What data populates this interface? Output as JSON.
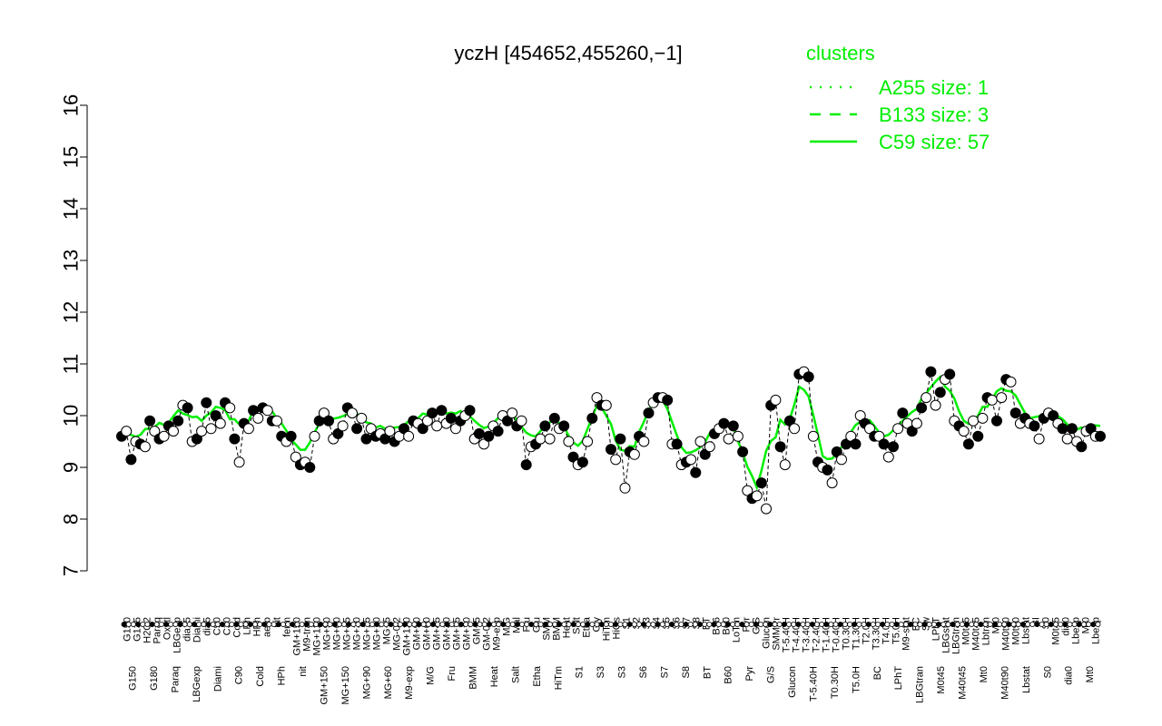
{
  "chart_data": {
    "type": "line",
    "title": "yczH [454652,455260,−1]",
    "ylim": [
      7,
      16
    ],
    "yticks": [
      7,
      8,
      9,
      10,
      11,
      12,
      13,
      14,
      15,
      16
    ],
    "legend": {
      "title": "clusters",
      "placement": "top-right",
      "color": "#00ee00",
      "entries": [
        {
          "label": "A255 size: 1",
          "style": "dotted"
        },
        {
          "label": "B133 size: 3",
          "style": "dashed"
        },
        {
          "label": "C59 size: 57",
          "style": "solid"
        }
      ]
    },
    "top_labels": [
      "G150",
      "G135",
      "H2O2",
      "Paraq",
      "Oxctl",
      "LBGexp",
      "dia15",
      "Diami",
      "dia5",
      "C90",
      "C30",
      "Cold",
      "LPh",
      "HPh",
      "aero",
      "nit",
      "ferm",
      "GM+150",
      "M9-tran",
      "MG+120",
      "MG+90",
      "MG+60",
      "MG+45",
      "MG+30",
      "MG+15",
      "MG+10",
      "MG+5",
      "MG-0.2",
      "GM+120",
      "GM+90",
      "GM+60",
      "GM+45",
      "GM+30",
      "GM+15",
      "GM+10",
      "GM+5",
      "GM-0.2",
      "M9-exp",
      "M/G",
      "Mal",
      "Fru",
      "Glu",
      "SMM",
      "BMM",
      "Heat",
      "Salt",
      "Etha",
      "Gly",
      "HiTm",
      "HiOs",
      "S1",
      "S2",
      "S3",
      "S4",
      "S5",
      "S6",
      "S7",
      "S8",
      "BT",
      "B36",
      "B60",
      "LoTm",
      "Pyr",
      "G/S",
      "Glucon",
      "SMMPr",
      "T-5.40H",
      "T-4.40H",
      "T-3.40H",
      "T-2.40H",
      "T-1.40H",
      "T-0.40H",
      "T0.30H",
      "T1.30H",
      "T2.0H",
      "T3.30H",
      "T4.0H",
      "T5.0H",
      "M9-stat",
      "BC",
      "Sw",
      "LPhT",
      "LBGstat",
      "LBGtran",
      "M0t45",
      "M40t45",
      "Lbtran",
      "Mt0",
      "M40t90",
      "M0t90",
      "Lbstat",
      "BI",
      "S0",
      "M0t45",
      "dia0",
      "Lbexp",
      "Mt0",
      "Lbexp"
    ],
    "bottom_labels": [
      "G150",
      "G180",
      "Paraq",
      "LBGexp",
      "Diami",
      "C90",
      "Cold",
      "HPh",
      "nit",
      "GM+150",
      "MG+150",
      "MG+90",
      "MG+60",
      "M9-exp",
      "M/G",
      "Fru",
      "BMM",
      "Heat",
      "Salt",
      "Etha",
      "HiTm",
      "S1",
      "S3",
      "S3",
      "S6",
      "S7",
      "S8",
      "BT",
      "B60",
      "Pyr",
      "G/S",
      "Glucon",
      "T-5.40H",
      "T0.30H",
      "T5.0H",
      "BC",
      "LPhT",
      "LBGtran",
      "M0t45",
      "M40t45",
      "Mt0",
      "M40t90",
      "Lbstat",
      "S0",
      "dia0",
      "Mt0"
    ],
    "series": [
      {
        "style": "points",
        "points": [
          [
            1,
            9.6
          ],
          [
            2,
            9.7
          ],
          [
            3,
            9.15
          ],
          [
            4,
            9.5
          ],
          [
            5,
            9.45
          ],
          [
            6,
            9.4
          ],
          [
            7,
            9.9
          ],
          [
            8,
            9.7
          ],
          [
            9,
            9.55
          ],
          [
            10,
            9.6
          ],
          [
            11,
            9.8
          ],
          [
            12,
            9.7
          ],
          [
            13,
            9.9
          ],
          [
            14,
            10.2
          ],
          [
            15,
            10.15
          ],
          [
            16,
            9.5
          ],
          [
            17,
            9.55
          ],
          [
            18,
            9.7
          ],
          [
            19,
            10.25
          ],
          [
            20,
            9.75
          ],
          [
            21,
            10
          ],
          [
            22,
            9.85
          ],
          [
            23,
            10.25
          ],
          [
            24,
            10.15
          ],
          [
            25,
            9.55
          ],
          [
            26,
            9.1
          ],
          [
            27,
            9.85
          ],
          [
            28,
            9.75
          ],
          [
            29,
            10.1
          ],
          [
            30,
            9.95
          ],
          [
            31,
            10.15
          ],
          [
            32,
            10.1
          ],
          [
            33,
            9.9
          ],
          [
            34,
            9.9
          ],
          [
            35,
            9.6
          ],
          [
            36,
            9.5
          ],
          [
            37,
            9.6
          ],
          [
            38,
            9.2
          ],
          [
            39,
            9.05
          ],
          [
            40,
            9.1
          ],
          [
            41,
            9
          ],
          [
            42,
            9.6
          ],
          [
            43,
            9.9
          ],
          [
            44,
            10.05
          ],
          [
            45,
            9.9
          ],
          [
            46,
            9.55
          ],
          [
            47,
            9.65
          ],
          [
            48,
            9.8
          ],
          [
            49,
            10.15
          ],
          [
            50,
            10.05
          ],
          [
            51,
            9.75
          ],
          [
            52,
            9.95
          ],
          [
            53,
            9.55
          ],
          [
            54,
            9.75
          ],
          [
            55,
            9.6
          ],
          [
            56,
            9.65
          ],
          [
            57,
            9.55
          ],
          [
            58,
            9.7
          ],
          [
            59,
            9.5
          ],
          [
            60,
            9.6
          ],
          [
            61,
            9.75
          ],
          [
            62,
            9.6
          ],
          [
            63,
            9.9
          ],
          [
            64,
            9.85
          ],
          [
            65,
            9.75
          ],
          [
            66,
            9.9
          ],
          [
            67,
            10.05
          ],
          [
            68,
            9.8
          ],
          [
            69,
            10.1
          ],
          [
            70,
            9.85
          ],
          [
            71,
            9.95
          ],
          [
            72,
            9.75
          ],
          [
            73,
            9.9
          ],
          [
            74,
            10
          ],
          [
            75,
            10.1
          ],
          [
            76,
            9.55
          ],
          [
            77,
            9.65
          ],
          [
            78,
            9.45
          ],
          [
            79,
            9.6
          ],
          [
            80,
            9.8
          ],
          [
            81,
            9.7
          ],
          [
            82,
            10
          ],
          [
            83,
            9.9
          ],
          [
            84,
            10.05
          ],
          [
            85,
            9.8
          ],
          [
            86,
            9.9
          ],
          [
            87,
            9.05
          ],
          [
            88,
            9.4
          ],
          [
            89,
            9.45
          ],
          [
            90,
            9.55
          ],
          [
            91,
            9.8
          ],
          [
            92,
            9.55
          ],
          [
            93,
            9.95
          ],
          [
            94,
            9.75
          ],
          [
            95,
            9.8
          ],
          [
            96,
            9.5
          ],
          [
            97,
            9.2
          ],
          [
            98,
            9.05
          ],
          [
            99,
            9.1
          ],
          [
            100,
            9.5
          ],
          [
            101,
            9.95
          ],
          [
            102,
            10.35
          ],
          [
            103,
            10.2
          ],
          [
            104,
            10.2
          ],
          [
            105,
            9.35
          ],
          [
            106,
            9.15
          ],
          [
            107,
            9.55
          ],
          [
            108,
            8.6
          ],
          [
            109,
            9.3
          ],
          [
            110,
            9.25
          ],
          [
            111,
            9.6
          ],
          [
            112,
            9.5
          ],
          [
            113,
            10.05
          ],
          [
            114,
            10.25
          ],
          [
            115,
            10.35
          ],
          [
            116,
            10.35
          ],
          [
            117,
            10.3
          ],
          [
            118,
            9.45
          ],
          [
            119,
            9.45
          ],
          [
            120,
            9.05
          ],
          [
            121,
            9.1
          ],
          [
            122,
            9.15
          ],
          [
            123,
            8.9
          ],
          [
            124,
            9.5
          ],
          [
            125,
            9.25
          ],
          [
            126,
            9.4
          ],
          [
            127,
            9.65
          ],
          [
            128,
            9.75
          ],
          [
            129,
            9.85
          ],
          [
            130,
            9.55
          ],
          [
            131,
            9.8
          ],
          [
            132,
            9.6
          ],
          [
            133,
            9.3
          ],
          [
            134,
            8.55
          ],
          [
            135,
            8.4
          ],
          [
            136,
            8.45
          ],
          [
            137,
            8.7
          ],
          [
            138,
            8.2
          ],
          [
            139,
            10.2
          ],
          [
            140,
            10.3
          ],
          [
            141,
            9.4
          ],
          [
            142,
            9.05
          ],
          [
            143,
            9.9
          ],
          [
            144,
            9.75
          ],
          [
            145,
            10.8
          ],
          [
            146,
            10.85
          ],
          [
            147,
            10.75
          ],
          [
            148,
            9.6
          ],
          [
            149,
            9.1
          ],
          [
            150,
            9
          ],
          [
            151,
            8.95
          ],
          [
            152,
            8.7
          ],
          [
            153,
            9.3
          ],
          [
            154,
            9.15
          ],
          [
            155,
            9.45
          ],
          [
            156,
            9.6
          ],
          [
            157,
            9.45
          ],
          [
            158,
            10
          ],
          [
            159,
            9.85
          ],
          [
            160,
            9.75
          ],
          [
            161,
            9.6
          ],
          [
            162,
            9.6
          ],
          [
            163,
            9.45
          ],
          [
            164,
            9.2
          ],
          [
            165,
            9.4
          ],
          [
            166,
            9.75
          ],
          [
            167,
            10.05
          ],
          [
            168,
            9.85
          ],
          [
            169,
            9.7
          ],
          [
            170,
            9.85
          ],
          [
            171,
            10.15
          ],
          [
            172,
            10.35
          ],
          [
            173,
            10.85
          ],
          [
            174,
            10.2
          ],
          [
            175,
            10.45
          ],
          [
            176,
            10.7
          ],
          [
            177,
            10.8
          ],
          [
            178,
            9.9
          ],
          [
            179,
            9.8
          ],
          [
            180,
            9.7
          ],
          [
            181,
            9.45
          ],
          [
            182,
            9.9
          ],
          [
            183,
            9.6
          ],
          [
            184,
            9.95
          ],
          [
            185,
            10.35
          ],
          [
            186,
            10.3
          ],
          [
            187,
            9.9
          ],
          [
            188,
            10.35
          ],
          [
            189,
            10.7
          ],
          [
            190,
            10.65
          ],
          [
            191,
            10.05
          ],
          [
            192,
            9.85
          ],
          [
            193,
            9.95
          ],
          [
            194,
            9.85
          ],
          [
            195,
            9.8
          ],
          [
            196,
            9.55
          ],
          [
            197,
            9.95
          ],
          [
            198,
            10.05
          ],
          [
            199,
            10
          ],
          [
            200,
            9.85
          ],
          [
            201,
            9.75
          ],
          [
            202,
            9.55
          ],
          [
            203,
            9.75
          ],
          [
            204,
            9.5
          ],
          [
            205,
            9.4
          ],
          [
            206,
            9.7
          ],
          [
            207,
            9.75
          ],
          [
            208,
            9.6
          ],
          [
            209,
            9.6
          ]
        ]
      }
    ]
  },
  "ui": {
    "title": "yczH [454652,455260,−1]",
    "legend_title": "clusters",
    "legend_items": [
      "A255 size: 1",
      "B133 size: 3",
      "C59 size: 57"
    ]
  }
}
